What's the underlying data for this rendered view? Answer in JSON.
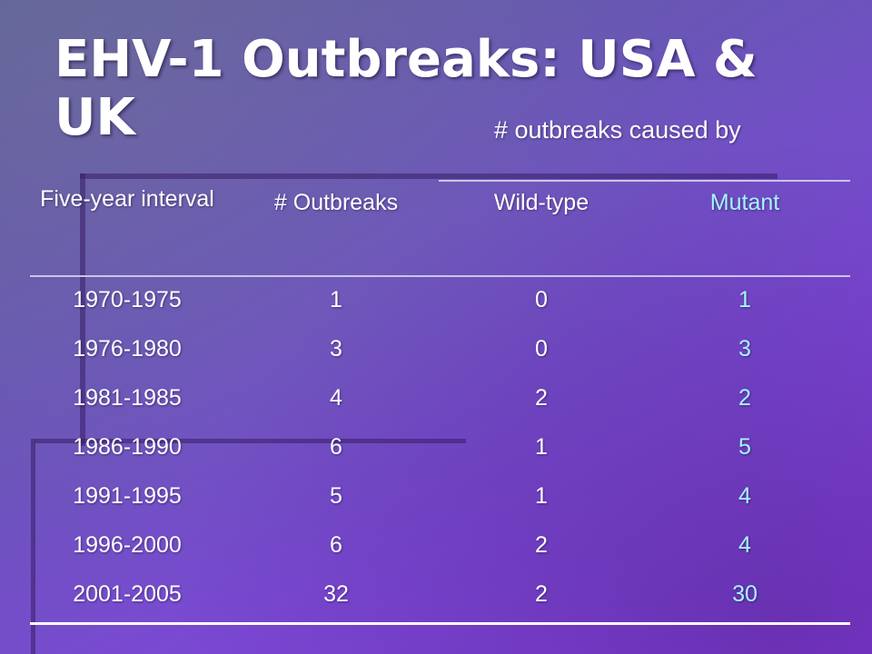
{
  "slide": {
    "title": "EHV-1 Outbreaks: USA & UK",
    "subtitle": "# outbreaks caused by"
  },
  "table": {
    "headers": {
      "interval": "Five-year interval",
      "outbreaks": "# Outbreaks",
      "wild_type": "Wild-type",
      "mutant": "Mutant"
    },
    "rows": [
      {
        "interval": "1970-1975",
        "outbreaks": "1",
        "wild_type": "0",
        "mutant": "1"
      },
      {
        "interval": "1976-1980",
        "outbreaks": "3",
        "wild_type": "0",
        "mutant": "3"
      },
      {
        "interval": "1981-1985",
        "outbreaks": "4",
        "wild_type": "2",
        "mutant": "2"
      },
      {
        "interval": "1986-1990",
        "outbreaks": "6",
        "wild_type": "1",
        "mutant": "5"
      },
      {
        "interval": "1991-1995",
        "outbreaks": "5",
        "wild_type": "1",
        "mutant": "4"
      },
      {
        "interval": "1996-2000",
        "outbreaks": "6",
        "wild_type": "2",
        "mutant": "4"
      },
      {
        "interval": "2001-2005",
        "outbreaks": "32",
        "wild_type": "2",
        "mutant": "30"
      }
    ]
  },
  "colors": {
    "background": "#6a55b8",
    "text": "#ffffff",
    "mutant_text": "#a6f4ff"
  }
}
